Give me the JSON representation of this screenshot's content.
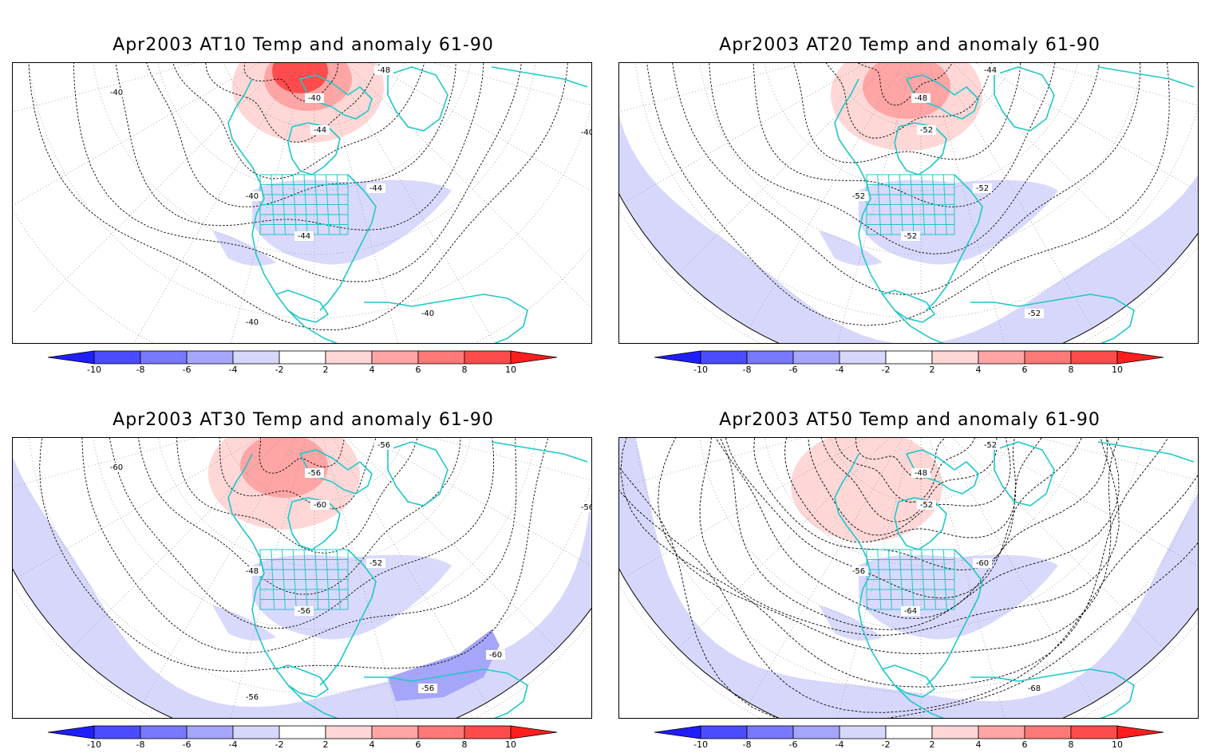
{
  "panels": [
    {
      "title": "Apr2003 AT10 Temp and anomaly 61-90",
      "contour_labels": [
        "-48",
        "-40",
        "-44",
        "-40",
        "-44",
        "-44",
        "-40",
        "-40",
        "-40",
        "-40"
      ],
      "cap_anomaly": "warm",
      "hemisphere": "small"
    },
    {
      "title": "Apr2003 AT20 Temp and anomaly 61-90",
      "contour_labels": [
        "-44",
        "-48",
        "-52",
        "-52",
        "-52",
        "-52",
        "-52"
      ],
      "cap_anomaly": "warm",
      "hemisphere": "large"
    },
    {
      "title": "Apr2003 AT30 Temp and anomaly 61-90",
      "contour_labels": [
        "-56",
        "-56",
        "-60",
        "-48",
        "-52",
        "-56",
        "-56",
        "-56",
        "-56",
        "-60",
        "-60"
      ],
      "cap_anomaly": "warm",
      "hemisphere": "large"
    },
    {
      "title": "Apr2003 AT50 Temp and anomaly 61-90",
      "contour_labels": [
        "-52",
        "-48",
        "-52",
        "-56",
        "-60",
        "-64",
        "-68"
      ],
      "cap_anomaly": "warm",
      "hemisphere": "large"
    }
  ],
  "colorbar": {
    "ticks": [
      "-10",
      "-8",
      "-6",
      "-4",
      "-2",
      "2",
      "4",
      "6",
      "8",
      "10"
    ],
    "colors": [
      "#1e1eff",
      "#4b4bff",
      "#7878ff",
      "#a5a5fa",
      "#d7d7fc",
      "#ffffff",
      "#ffd7d7",
      "#ffa5a5",
      "#ff7878",
      "#ff4b4b",
      "#ff1e1e"
    ]
  },
  "colors": {
    "coast": "#1fc8c8",
    "contour": "#000000",
    "grid": "#9a9a9a"
  }
}
